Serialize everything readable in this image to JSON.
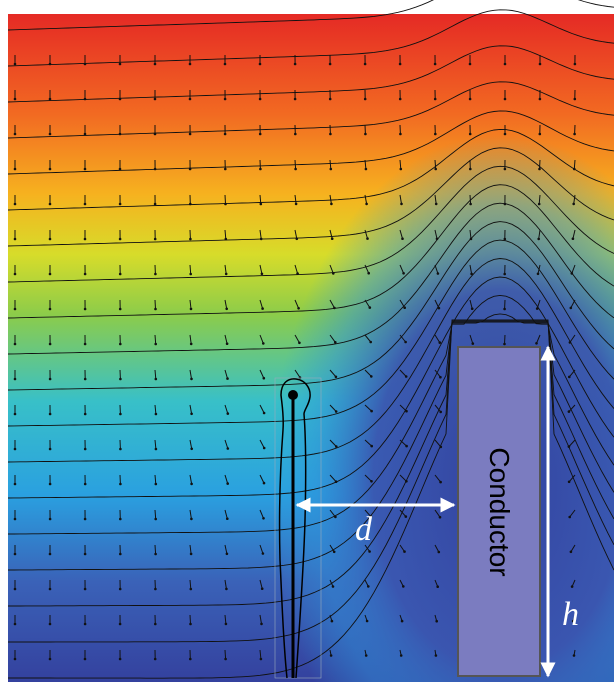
{
  "figure": {
    "conductor_label": "Conductor",
    "distance_label": "d",
    "height_label": "h"
  }
}
